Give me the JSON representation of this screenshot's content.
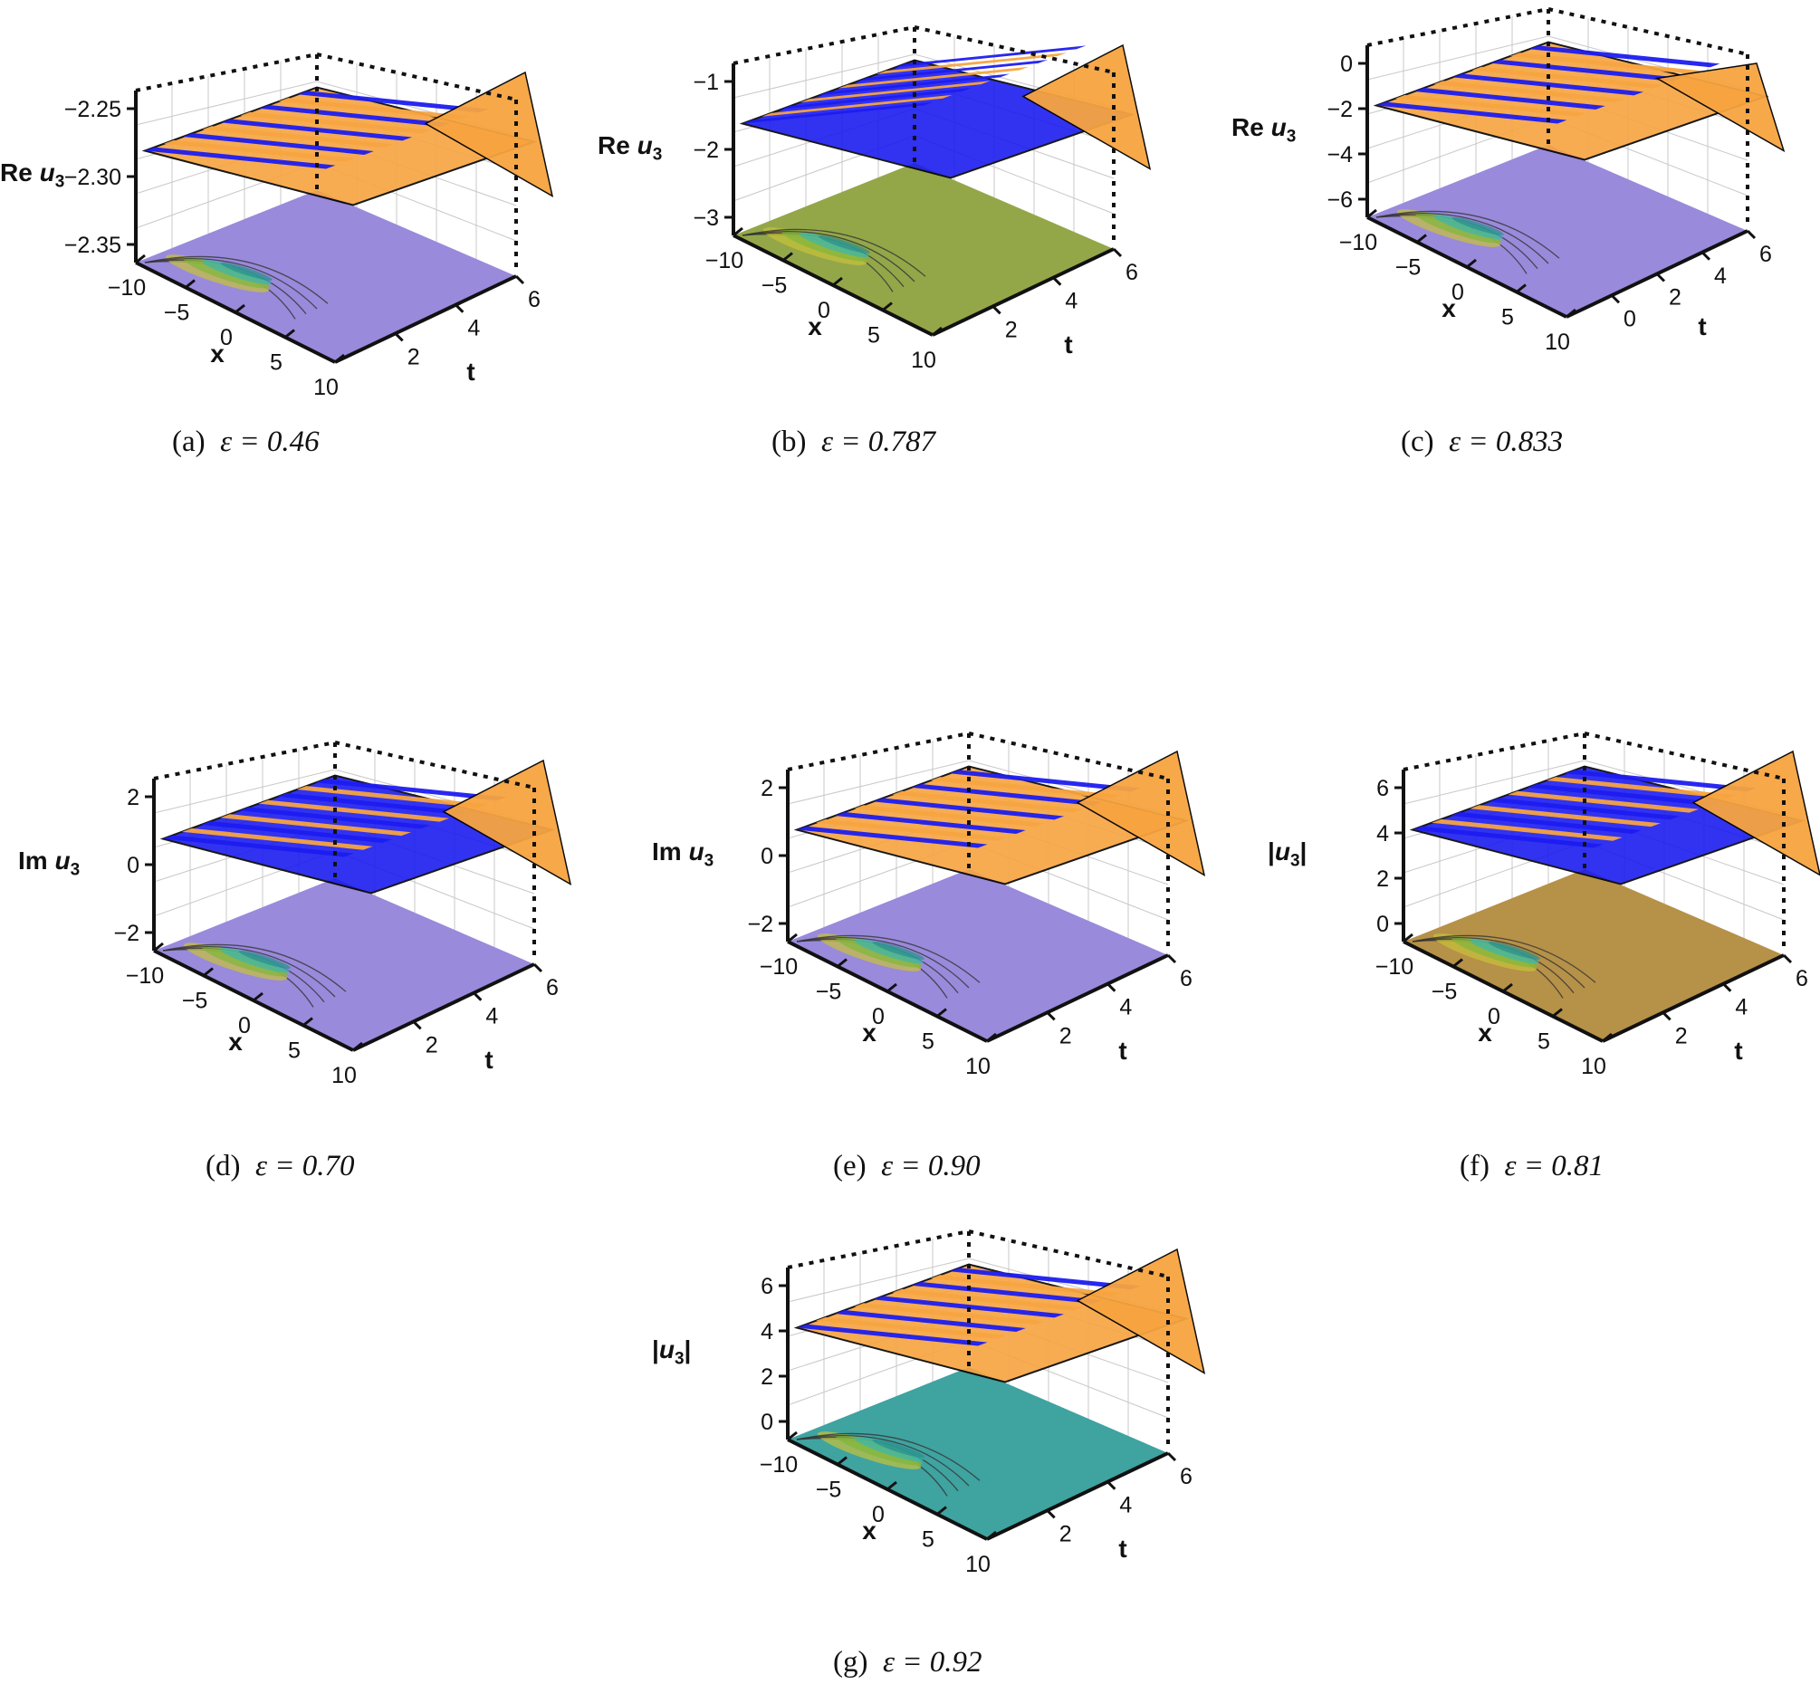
{
  "panels": [
    {
      "id": "a",
      "caption_label": "(a)",
      "epsilon": "ε = 0.46",
      "z_label_prefix": "Re ",
      "z_label_var": "u",
      "z_label_sub": "3",
      "z_ticks": [
        "−2.25",
        "−2.30",
        "−2.35"
      ],
      "x_ticks": [
        "−10",
        "−5",
        "0",
        "5",
        "10"
      ],
      "t_ticks": [
        "2",
        "4",
        "6"
      ],
      "x_label": "x",
      "t_label": "t",
      "floor_color": "#9080d8"
    },
    {
      "id": "b",
      "caption_label": "(b)",
      "epsilon": "ε = 0.787",
      "z_label_prefix": "Re ",
      "z_label_var": "u",
      "z_label_sub": "3",
      "z_ticks": [
        "−1",
        "−2",
        "−3"
      ],
      "x_ticks": [
        "−10",
        "−5",
        "0",
        "5",
        "10"
      ],
      "t_ticks": [
        "2",
        "4",
        "6"
      ],
      "x_label": "x",
      "t_label": "t",
      "floor_color": "#8aa03a"
    },
    {
      "id": "c",
      "caption_label": "(c)",
      "epsilon": "ε = 0.833",
      "z_label_prefix": "Re ",
      "z_label_var": "u",
      "z_label_sub": "3",
      "z_ticks": [
        "0",
        "−2",
        "−4",
        "−6"
      ],
      "x_ticks": [
        "−10",
        "−5",
        "0",
        "5",
        "10"
      ],
      "t_ticks": [
        "0",
        "2",
        "4",
        "6"
      ],
      "x_label": "x",
      "t_label": "t",
      "floor_color": "#9080d8"
    },
    {
      "id": "d",
      "caption_label": "(d)",
      "epsilon": "ε = 0.70",
      "z_label_prefix": "Im ",
      "z_label_var": "u",
      "z_label_sub": "3",
      "z_ticks": [
        "2",
        "0",
        "−2"
      ],
      "x_ticks": [
        "−10",
        "−5",
        "0",
        "5",
        "10"
      ],
      "t_ticks": [
        "2",
        "4",
        "6"
      ],
      "x_label": "x",
      "t_label": "t",
      "floor_color": "#9080d8"
    },
    {
      "id": "e",
      "caption_label": "(e)",
      "epsilon": "ε = 0.90",
      "z_label_prefix": "Im ",
      "z_label_var": "u",
      "z_label_sub": "3",
      "z_ticks": [
        "2",
        "0",
        "−2"
      ],
      "x_ticks": [
        "−10",
        "−5",
        "0",
        "5",
        "10"
      ],
      "t_ticks": [
        "2",
        "4",
        "6"
      ],
      "x_label": "x",
      "t_label": "t",
      "floor_color": "#9080d8"
    },
    {
      "id": "f",
      "caption_label": "(f)",
      "epsilon": "ε = 0.81",
      "z_label_prefix": "|",
      "z_label_var": "u",
      "z_label_sub": "3",
      "z_label_suffix": "|",
      "z_ticks": [
        "6",
        "4",
        "2",
        "0"
      ],
      "x_ticks": [
        "−10",
        "−5",
        "0",
        "5",
        "10"
      ],
      "t_ticks": [
        "2",
        "4",
        "6"
      ],
      "x_label": "x",
      "t_label": "t",
      "floor_color": "#b08838"
    },
    {
      "id": "g",
      "caption_label": "(g)",
      "epsilon": "ε = 0.92",
      "z_label_prefix": "|",
      "z_label_var": "u",
      "z_label_sub": "3",
      "z_label_suffix": "|",
      "z_ticks": [
        "6",
        "4",
        "2",
        "0"
      ],
      "x_ticks": [
        "−10",
        "−5",
        "0",
        "5",
        "10"
      ],
      "t_ticks": [
        "2",
        "4",
        "6"
      ],
      "x_label": "x",
      "t_label": "t",
      "floor_color": "#2f9b98"
    }
  ],
  "colors": {
    "orange": "#f7a440",
    "blue": "#1c1cf0",
    "frame": "#111111",
    "grid": "#c8c8c8"
  }
}
